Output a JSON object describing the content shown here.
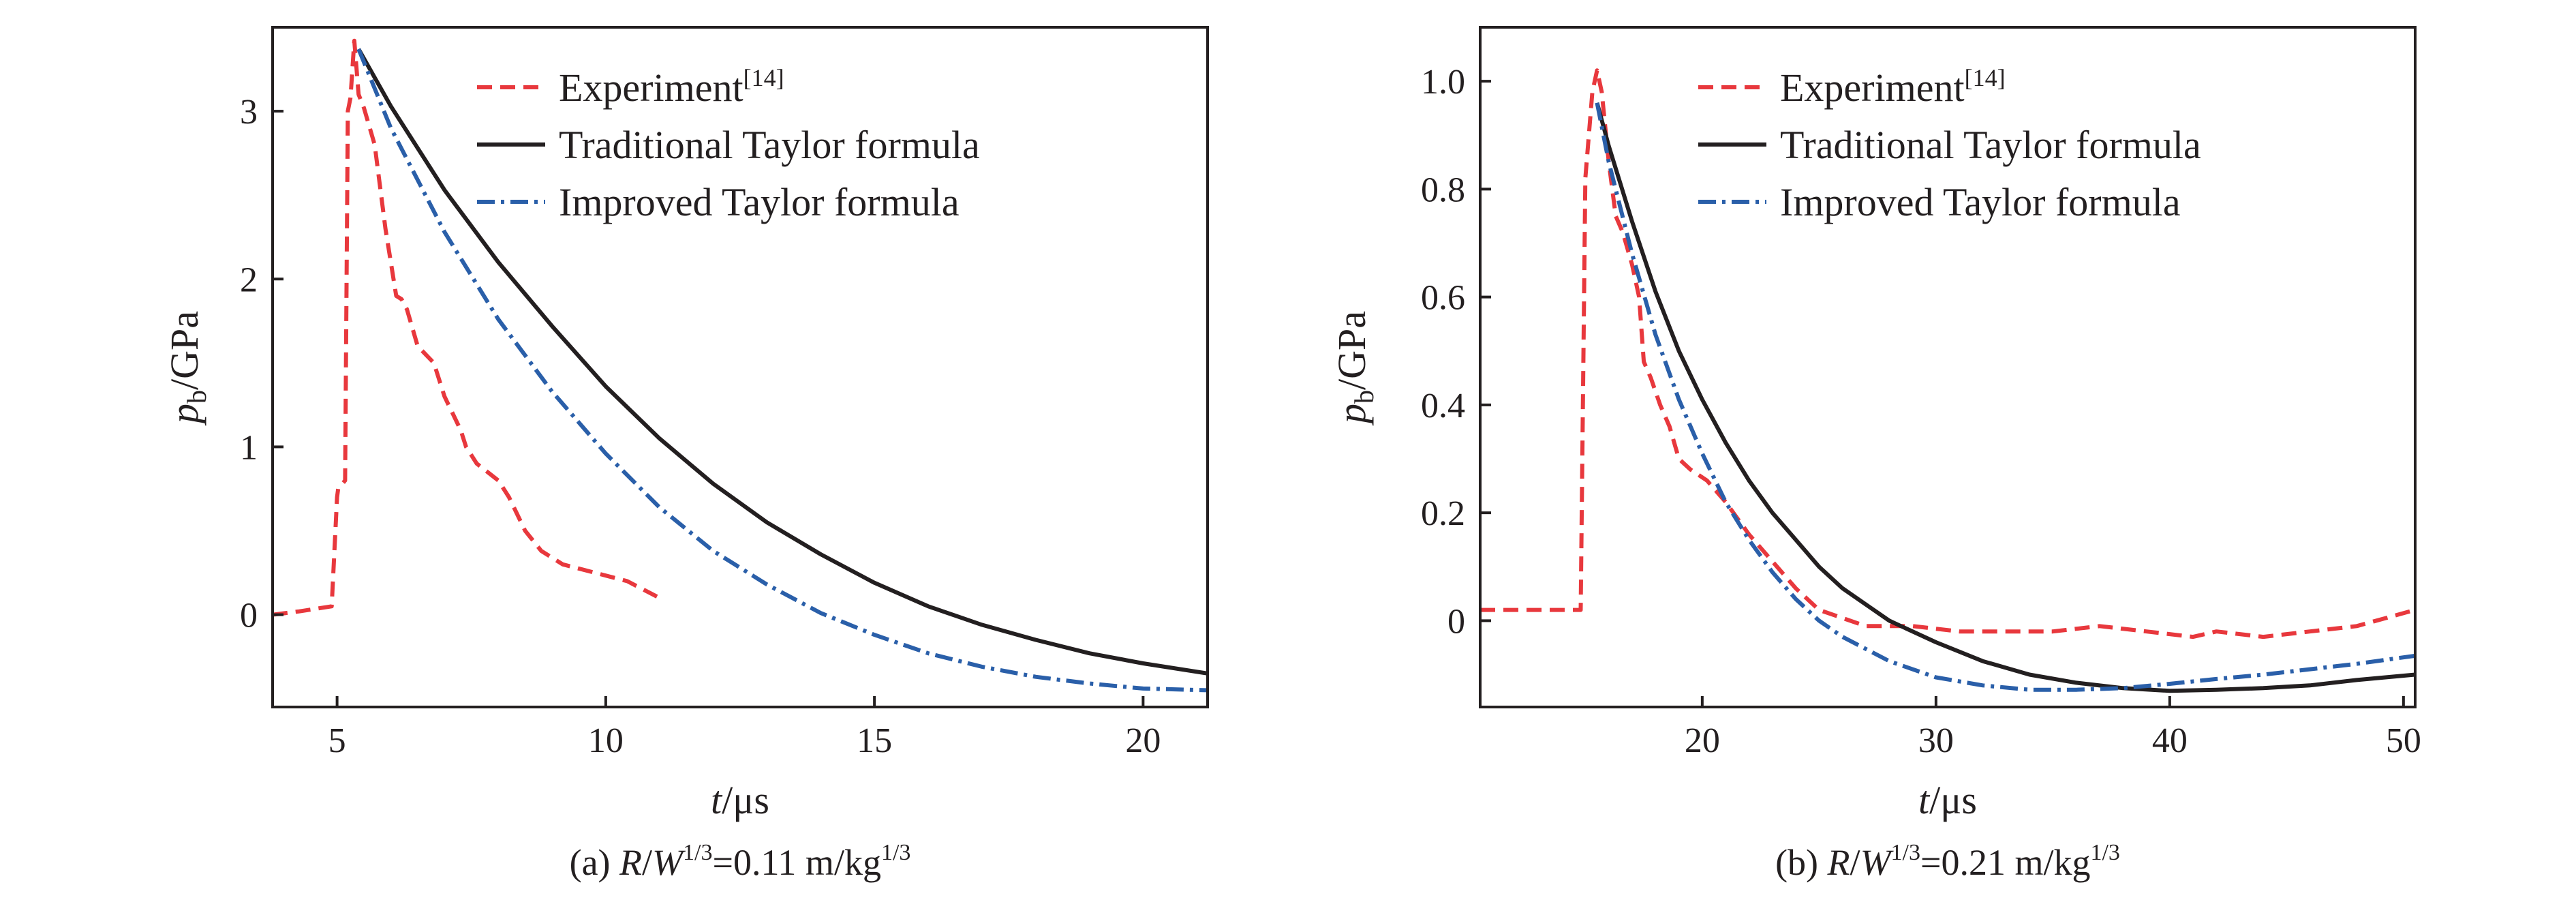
{
  "chart_data": [
    {
      "type": "line",
      "caption": {
        "prefix": "(a) ",
        "R": "R",
        "slash": "/",
        "W": "W",
        "exp": "1/3",
        "eq": "=0.11 m/kg",
        "unit_exp": "1/3"
      },
      "xlabel": {
        "t": "t",
        "unit": "/μs"
      },
      "ylabel": {
        "p": "p",
        "sub": "b",
        "unit": "/GPa"
      },
      "xlim": [
        3.8,
        21.2
      ],
      "ylim": [
        -0.55,
        3.5
      ],
      "xticks": [
        5,
        10,
        15,
        20
      ],
      "yticks": [
        0,
        1,
        2,
        3
      ],
      "grid": false,
      "legend_position": "top-right",
      "series": [
        {
          "name": "Experiment",
          "ref": "[14]",
          "color": "#e8383d",
          "style": "dashed",
          "x": [
            3.8,
            4.3,
            4.9,
            5.0,
            5.02,
            5.15,
            5.2,
            5.25,
            5.32,
            5.4,
            5.5,
            5.7,
            5.9,
            6.1,
            6.2,
            6.3,
            6.5,
            6.8,
            7.0,
            7.3,
            7.4,
            7.6,
            8.0,
            8.2,
            8.5,
            8.8,
            9.2,
            9.8,
            10.4,
            11.0
          ],
          "y": [
            0.0,
            0.02,
            0.05,
            0.7,
            0.75,
            0.8,
            3.0,
            3.08,
            3.42,
            3.1,
            3.02,
            2.8,
            2.3,
            1.9,
            1.88,
            1.82,
            1.6,
            1.5,
            1.3,
            1.1,
            1.0,
            0.9,
            0.8,
            0.7,
            0.5,
            0.38,
            0.3,
            0.25,
            0.2,
            0.1
          ]
        },
        {
          "name": "Traditional Taylor formula",
          "color": "#231f20",
          "style": "solid",
          "x": [
            5.4,
            6,
            7,
            8,
            9,
            10,
            11,
            12,
            13,
            14,
            15,
            16,
            17,
            18,
            19,
            20,
            21.2
          ],
          "y": [
            3.37,
            3.03,
            2.53,
            2.1,
            1.72,
            1.36,
            1.05,
            0.78,
            0.55,
            0.36,
            0.19,
            0.05,
            -0.06,
            -0.15,
            -0.23,
            -0.29,
            -0.35
          ]
        },
        {
          "name": "Improved Taylor formula",
          "color": "#2a5fa9",
          "style": "dashdot",
          "x": [
            5.4,
            6,
            7,
            8,
            9,
            10,
            11,
            12,
            13,
            14,
            15,
            16,
            17,
            18,
            19,
            20,
            21.2
          ],
          "y": [
            3.37,
            2.9,
            2.28,
            1.76,
            1.33,
            0.96,
            0.64,
            0.38,
            0.18,
            0.01,
            -0.12,
            -0.23,
            -0.31,
            -0.37,
            -0.41,
            -0.44,
            -0.45
          ]
        }
      ]
    },
    {
      "type": "line",
      "caption": {
        "prefix": "(b) ",
        "R": "R",
        "slash": "/",
        "W": "W",
        "exp": "1/3",
        "eq": "=0.21 m/kg",
        "unit_exp": "1/3"
      },
      "xlabel": {
        "t": "t",
        "unit": "/μs"
      },
      "ylabel": {
        "p": "p",
        "sub": "b",
        "unit": "/GPa"
      },
      "xlim": [
        10.5,
        50.5
      ],
      "ylim": [
        -0.16,
        1.1
      ],
      "xticks": [
        20,
        30,
        40,
        50
      ],
      "yticks": [
        0,
        0.2,
        0.4,
        0.6,
        0.8,
        1.0
      ],
      "ytick_labels": [
        "0",
        "0.2",
        "0.4",
        "0.6",
        "0.8",
        "1.0"
      ],
      "grid": false,
      "legend_position": "top-right",
      "series": [
        {
          "name": "Experiment",
          "ref": "[14]",
          "color": "#e8383d",
          "style": "dashed",
          "x": [
            10.5,
            13,
            14.8,
            15.0,
            15.3,
            15.5,
            15.7,
            16.0,
            16.3,
            16.6,
            17.0,
            17.3,
            17.5,
            17.8,
            18.2,
            18.6,
            19.0,
            19.5,
            20.2,
            21,
            22,
            23,
            24,
            25,
            27,
            29,
            31,
            33,
            35,
            37,
            39,
            41,
            42,
            44,
            46,
            48,
            50.5
          ],
          "y": [
            0.02,
            0.02,
            0.02,
            0.82,
            0.98,
            1.02,
            0.98,
            0.85,
            0.75,
            0.72,
            0.66,
            0.6,
            0.48,
            0.45,
            0.4,
            0.36,
            0.3,
            0.28,
            0.26,
            0.22,
            0.16,
            0.11,
            0.06,
            0.02,
            -0.01,
            -0.01,
            -0.02,
            -0.02,
            -0.02,
            -0.01,
            -0.02,
            -0.03,
            -0.02,
            -0.03,
            -0.02,
            -0.01,
            0.02
          ]
        },
        {
          "name": "Traditional Taylor formula",
          "color": "#231f20",
          "style": "solid",
          "x": [
            15.5,
            16,
            17,
            18,
            19,
            20,
            21,
            22,
            23,
            24,
            25,
            26,
            28,
            30,
            32,
            34,
            36,
            38,
            40,
            42,
            44,
            46,
            48,
            50.5
          ],
          "y": [
            0.96,
            0.88,
            0.74,
            0.61,
            0.5,
            0.41,
            0.33,
            0.26,
            0.2,
            0.15,
            0.1,
            0.06,
            0.0,
            -0.04,
            -0.075,
            -0.1,
            -0.115,
            -0.125,
            -0.13,
            -0.128,
            -0.125,
            -0.12,
            -0.11,
            -0.1
          ]
        },
        {
          "name": "Improved Taylor formula",
          "color": "#2a5fa9",
          "style": "dashdot",
          "x": [
            15.5,
            16,
            17,
            18,
            19,
            20,
            21,
            22,
            23,
            24,
            25,
            26,
            28,
            30,
            32,
            34,
            36,
            38,
            40,
            42,
            44,
            46,
            48,
            50.5
          ],
          "y": [
            0.96,
            0.85,
            0.68,
            0.53,
            0.41,
            0.31,
            0.22,
            0.15,
            0.09,
            0.04,
            0.0,
            -0.03,
            -0.075,
            -0.105,
            -0.12,
            -0.128,
            -0.128,
            -0.125,
            -0.117,
            -0.108,
            -0.1,
            -0.09,
            -0.08,
            -0.065
          ]
        }
      ]
    }
  ]
}
